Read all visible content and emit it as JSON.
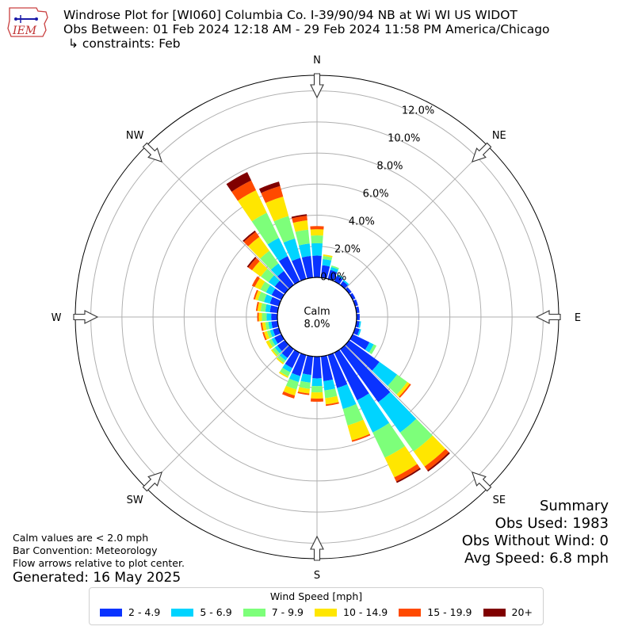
{
  "header": {
    "line1": "Windrose Plot for [WI060] Columbia Co. I-39/90/94 NB at Wi WI US WIDOT",
    "line2": "Obs Between: 01 Feb 2024 12:18 AM - 29 Feb 2024 11:58 PM America/Chicago",
    "line3": "↳ constraints: Feb"
  },
  "logo": {
    "text": "IEM"
  },
  "notes": {
    "line1": "Calm values are < 2.0 mph",
    "line2": "Bar Convention: Meteorology",
    "line3": "Flow arrows relative to plot center.",
    "generated": "Generated: 16 May 2025"
  },
  "summary": {
    "title": "Summary",
    "obs_used": "Obs Used: 1983",
    "obs_without_wind": "Obs Without Wind: 0",
    "avg_speed": "Avg Speed: 6.8 mph"
  },
  "legend": {
    "title": "Wind Speed [mph]",
    "items": [
      {
        "label": "2 - 4.9",
        "color": "#0a33ff"
      },
      {
        "label": "5 - 6.9",
        "color": "#00d4ff"
      },
      {
        "label": "7 - 9.9",
        "color": "#7dff7a"
      },
      {
        "label": "10 - 14.9",
        "color": "#ffe600"
      },
      {
        "label": "15 - 19.9",
        "color": "#ff4a00"
      },
      {
        "label": "20+",
        "color": "#800000"
      }
    ]
  },
  "chart_data": {
    "type": "windrose",
    "calm_label": "Calm",
    "calm_percent": 8.0,
    "calm_text": "8.0%",
    "radial_ticks": [
      0,
      2,
      4,
      6,
      8,
      10,
      12
    ],
    "radial_tick_labels": [
      "0.0%",
      "2.0%",
      "4.0%",
      "6.0%",
      "8.0%",
      "10.0%",
      "12.0%"
    ],
    "radial_max": 13.0,
    "compass_labels": [
      {
        "label": "N",
        "deg": 0
      },
      {
        "label": "NE",
        "deg": 45
      },
      {
        "label": "E",
        "deg": 90
      },
      {
        "label": "SE",
        "deg": 135
      },
      {
        "label": "S",
        "deg": 180
      },
      {
        "label": "SW",
        "deg": 225
      },
      {
        "label": "W",
        "deg": 270
      },
      {
        "label": "NW",
        "deg": 315
      }
    ],
    "speed_bins": [
      "2 - 4.9",
      "5 - 6.9",
      "7 - 9.9",
      "10 - 14.9",
      "15 - 19.9",
      "20+"
    ],
    "colors": [
      "#0a33ff",
      "#00d4ff",
      "#7dff7a",
      "#ffe600",
      "#ff4a00",
      "#800000"
    ],
    "directions": [
      0,
      10,
      20,
      30,
      40,
      50,
      60,
      70,
      80,
      90,
      100,
      110,
      120,
      130,
      140,
      150,
      160,
      170,
      180,
      190,
      200,
      210,
      220,
      230,
      240,
      250,
      260,
      270,
      280,
      290,
      300,
      310,
      320,
      330,
      340,
      350
    ],
    "values": [
      [
        1.4,
        0.8,
        0.5,
        0.4,
        0.2,
        0.0
      ],
      [
        0.8,
        0.4,
        0.2,
        0.1,
        0.0,
        0.0
      ],
      [
        0.6,
        0.2,
        0.1,
        0.0,
        0.0,
        0.0
      ],
      [
        0.4,
        0.1,
        0.0,
        0.0,
        0.0,
        0.0
      ],
      [
        0.3,
        0.1,
        0.0,
        0.0,
        0.0,
        0.0
      ],
      [
        0.2,
        0.0,
        0.0,
        0.0,
        0.0,
        0.0
      ],
      [
        0.2,
        0.0,
        0.0,
        0.0,
        0.0,
        0.0
      ],
      [
        0.2,
        0.0,
        0.0,
        0.0,
        0.0,
        0.0
      ],
      [
        0.2,
        0.0,
        0.0,
        0.0,
        0.0,
        0.0
      ],
      [
        0.2,
        0.0,
        0.0,
        0.0,
        0.0,
        0.0
      ],
      [
        0.2,
        0.1,
        0.0,
        0.0,
        0.0,
        0.0
      ],
      [
        0.3,
        0.1,
        0.0,
        0.0,
        0.0,
        0.0
      ],
      [
        1.2,
        0.3,
        0.2,
        0.0,
        0.0,
        0.0
      ],
      [
        2.4,
        1.4,
        0.8,
        0.2,
        0.1,
        0.0
      ],
      [
        4.2,
        2.4,
        1.5,
        1.2,
        0.3,
        0.1
      ],
      [
        3.4,
        2.3,
        1.8,
        1.4,
        0.3,
        0.1
      ],
      [
        2.2,
        1.4,
        1.1,
        1.0,
        0.1,
        0.0
      ],
      [
        1.6,
        0.6,
        0.5,
        0.4,
        0.1,
        0.0
      ],
      [
        1.4,
        0.5,
        0.4,
        0.4,
        0.2,
        0.0
      ],
      [
        1.2,
        0.5,
        0.4,
        0.3,
        0.1,
        0.0
      ],
      [
        1.4,
        0.4,
        0.5,
        0.4,
        0.2,
        0.0
      ],
      [
        1.1,
        0.3,
        0.3,
        0.1,
        0.0,
        0.0
      ],
      [
        0.7,
        0.2,
        0.2,
        0.1,
        0.0,
        0.0
      ],
      [
        0.6,
        0.2,
        0.2,
        0.1,
        0.0,
        0.0
      ],
      [
        0.5,
        0.2,
        0.2,
        0.2,
        0.0,
        0.0
      ],
      [
        0.4,
        0.2,
        0.2,
        0.2,
        0.1,
        0.0
      ],
      [
        0.4,
        0.2,
        0.2,
        0.2,
        0.1,
        0.0
      ],
      [
        0.4,
        0.3,
        0.3,
        0.2,
        0.1,
        0.0
      ],
      [
        0.5,
        0.3,
        0.3,
        0.2,
        0.1,
        0.0
      ],
      [
        0.6,
        0.4,
        0.4,
        0.2,
        0.1,
        0.0
      ],
      [
        0.7,
        0.4,
        0.4,
        0.4,
        0.2,
        0.0
      ],
      [
        0.8,
        0.5,
        0.6,
        0.7,
        0.3,
        0.1
      ],
      [
        1.1,
        0.6,
        1.0,
        1.1,
        0.4,
        0.1
      ],
      [
        1.8,
        1.3,
        1.8,
        1.6,
        0.7,
        0.6
      ],
      [
        1.4,
        1.3,
        1.5,
        1.3,
        0.7,
        0.3
      ],
      [
        1.4,
        0.8,
        0.9,
        0.6,
        0.3,
        0.1
      ]
    ]
  }
}
